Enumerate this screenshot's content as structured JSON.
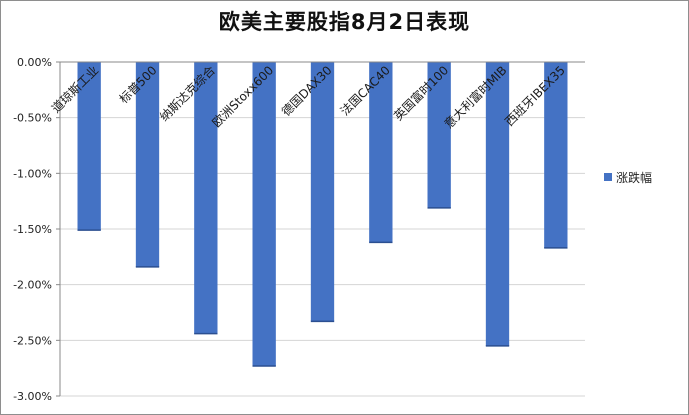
{
  "chart_data": {
    "type": "bar",
    "title": "欧美主要股指8月2日表现",
    "categories": [
      "道琼斯工业",
      "标普500",
      "纳斯达克综合",
      "欧洲Stoxx600",
      "德国DAX30",
      "法国CAC40",
      "英国富时100",
      "意大利富时MIB",
      "西班牙IBEX35"
    ],
    "series": [
      {
        "name": "涨跌幅",
        "values": [
          -1.51,
          -1.84,
          -2.44,
          -2.73,
          -2.33,
          -1.62,
          -1.31,
          -2.55,
          -1.67
        ]
      }
    ],
    "ylim": [
      -3.0,
      0.0
    ],
    "yticks": [
      0,
      -0.5,
      -1.0,
      -1.5,
      -2.0,
      -2.5,
      -3.0
    ],
    "ytick_labels": [
      "0.00%",
      "-0.50%",
      "-1.00%",
      "-1.50%",
      "-2.00%",
      "-2.50%",
      "-3.00%"
    ],
    "grid": true,
    "legend_position": "right",
    "bar_color": "#4472c4"
  }
}
